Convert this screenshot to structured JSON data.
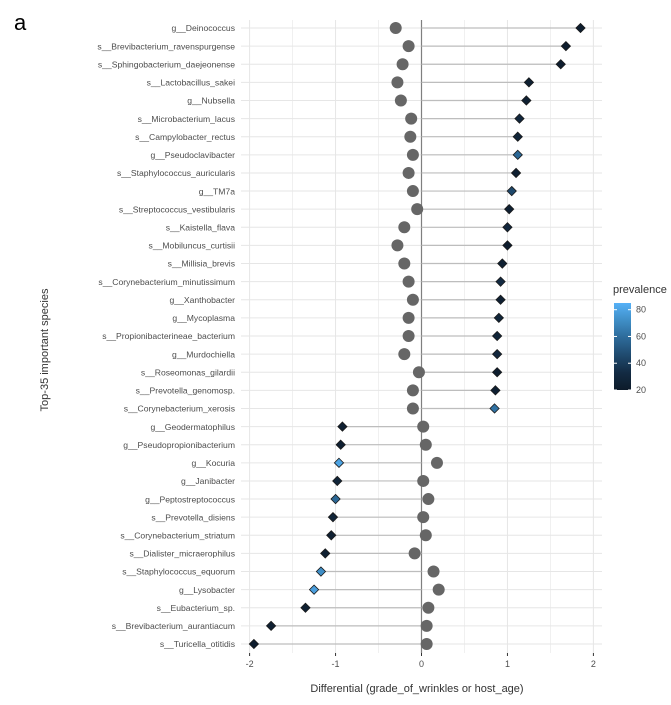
{
  "panel_label": "a",
  "chart_data": {
    "type": "dot",
    "xlabel": "Differential (grade_of_wrinkles or host_age)",
    "ylabel": "Top-35 important species",
    "xlim": [
      -2.1,
      2.1
    ],
    "x_ticks": [
      -2,
      -1,
      0,
      1,
      2
    ],
    "grid": true,
    "legend": {
      "title": "prevalence",
      "placement": "right",
      "ticks": [
        20,
        40,
        60,
        80
      ],
      "range": [
        20,
        85
      ],
      "colors": [
        "#0d1b2a",
        "#132b43",
        "#1f4a6e",
        "#2d6a99",
        "#3f8ec6",
        "#56b1f7"
      ]
    },
    "colors": {
      "background_point": "#666666",
      "grid": "#e6e6e6",
      "axis_zero": "#7f7f7f",
      "segment": "#bdbdbd",
      "diamond_outline": "#1a1a1a"
    },
    "species": [
      {
        "name": "g__Deinococcus",
        "value": 1.85,
        "prevalence": 22,
        "background": -0.3
      },
      {
        "name": "s__Brevibacterium_ravenspurgense",
        "value": 1.68,
        "prevalence": 22,
        "background": -0.15
      },
      {
        "name": "s__Sphingobacterium_daejeonense",
        "value": 1.62,
        "prevalence": 22,
        "background": -0.22
      },
      {
        "name": "s__Lactobacillus_sakei",
        "value": 1.25,
        "prevalence": 24,
        "background": -0.28
      },
      {
        "name": "g__Nubsella",
        "value": 1.22,
        "prevalence": 24,
        "background": -0.24
      },
      {
        "name": "s__Microbacterium_lacus",
        "value": 1.14,
        "prevalence": 30,
        "background": -0.12
      },
      {
        "name": "s__Campylobacter_rectus",
        "value": 1.12,
        "prevalence": 28,
        "background": -0.13
      },
      {
        "name": "g__Pseudoclavibacter",
        "value": 1.12,
        "prevalence": 58,
        "background": -0.1
      },
      {
        "name": "s__Staphylococcus_auricularis",
        "value": 1.1,
        "prevalence": 24,
        "background": -0.15
      },
      {
        "name": "g__TM7a",
        "value": 1.05,
        "prevalence": 45,
        "background": -0.1
      },
      {
        "name": "s__Streptococcus_vestibularis",
        "value": 1.02,
        "prevalence": 24,
        "background": -0.05
      },
      {
        "name": "s__Kaistella_flava",
        "value": 1.0,
        "prevalence": 30,
        "background": -0.2
      },
      {
        "name": "s__Mobiluncus_curtisii",
        "value": 1.0,
        "prevalence": 22,
        "background": -0.28
      },
      {
        "name": "s__Millisia_brevis",
        "value": 0.94,
        "prevalence": 24,
        "background": -0.2
      },
      {
        "name": "s__Corynebacterium_minutissimum",
        "value": 0.92,
        "prevalence": 32,
        "background": -0.15
      },
      {
        "name": "g__Xanthobacter",
        "value": 0.92,
        "prevalence": 24,
        "background": -0.1
      },
      {
        "name": "g__Mycoplasma",
        "value": 0.9,
        "prevalence": 28,
        "background": -0.15
      },
      {
        "name": "s__Propionibacterineae_bacterium",
        "value": 0.88,
        "prevalence": 28,
        "background": -0.15
      },
      {
        "name": "g__Murdochiella",
        "value": 0.88,
        "prevalence": 30,
        "background": -0.2
      },
      {
        "name": "s__Roseomonas_gilardii",
        "value": 0.88,
        "prevalence": 22,
        "background": -0.03
      },
      {
        "name": "s__Prevotella_genomosp.",
        "value": 0.86,
        "prevalence": 24,
        "background": -0.1
      },
      {
        "name": "s__Corynebacterium_xerosis",
        "value": 0.85,
        "prevalence": 62,
        "background": -0.1
      },
      {
        "name": "g__Geodermatophilus",
        "value": -0.92,
        "prevalence": 24,
        "background": 0.02
      },
      {
        "name": "g__Pseudopropionibacterium",
        "value": -0.94,
        "prevalence": 24,
        "background": 0.05
      },
      {
        "name": "g__Kocuria",
        "value": -0.96,
        "prevalence": 80,
        "background": 0.18
      },
      {
        "name": "g__Janibacter",
        "value": -0.98,
        "prevalence": 28,
        "background": 0.02
      },
      {
        "name": "g__Peptostreptococcus",
        "value": -1.0,
        "prevalence": 58,
        "background": 0.08
      },
      {
        "name": "s__Prevotella_disiens",
        "value": -1.03,
        "prevalence": 28,
        "background": 0.02
      },
      {
        "name": "s__Corynebacterium_striatum",
        "value": -1.05,
        "prevalence": 24,
        "background": 0.05
      },
      {
        "name": "s__Dialister_micraerophilus",
        "value": -1.12,
        "prevalence": 24,
        "background": -0.08
      },
      {
        "name": "s__Staphylococcus_equorum",
        "value": -1.17,
        "prevalence": 72,
        "background": 0.14
      },
      {
        "name": "g__Lysobacter",
        "value": -1.25,
        "prevalence": 78,
        "background": 0.2
      },
      {
        "name": "s__Eubacterium_sp.",
        "value": -1.35,
        "prevalence": 24,
        "background": 0.08
      },
      {
        "name": "s__Brevibacterium_aurantiacum",
        "value": -1.75,
        "prevalence": 24,
        "background": 0.06
      },
      {
        "name": "s__Turicella_otitidis",
        "value": -1.95,
        "prevalence": 22,
        "background": 0.06
      }
    ]
  }
}
